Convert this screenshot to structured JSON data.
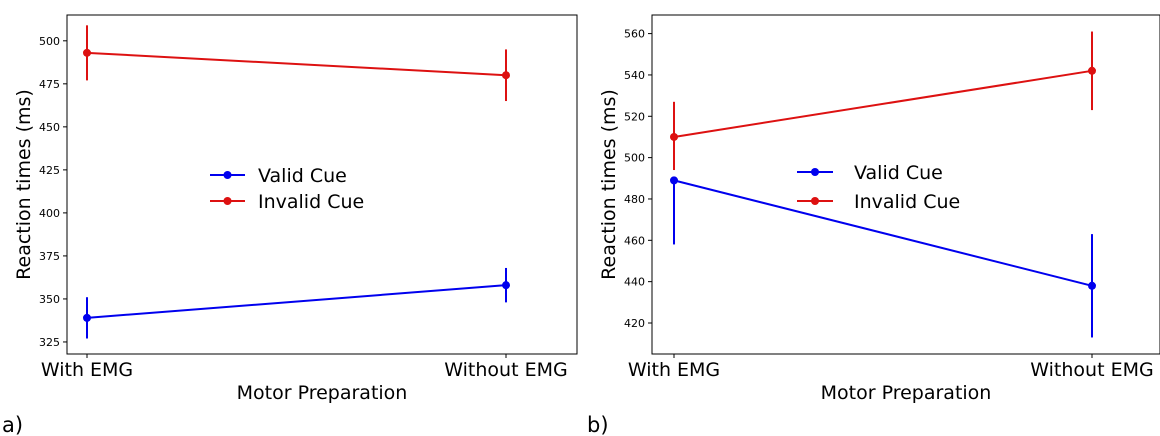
{
  "chart_data": [
    {
      "type": "line",
      "panel_label": "a)",
      "categories": [
        "With EMG",
        "Without EMG"
      ],
      "xlabel": "Motor Preparation",
      "ylabel": "Reaction times (ms)",
      "ylim": [
        318,
        515
      ],
      "yticks": [
        325,
        350,
        375,
        400,
        425,
        450,
        475,
        500
      ],
      "legend_position": "center",
      "series": [
        {
          "name": "Valid Cue",
          "color": "#0000ee",
          "values": [
            339,
            358
          ],
          "err_low": [
            327,
            348
          ],
          "err_high": [
            351,
            368
          ]
        },
        {
          "name": "Invalid Cue",
          "color": "#dd1111",
          "values": [
            493,
            480
          ],
          "err_low": [
            477,
            465
          ],
          "err_high": [
            509,
            495
          ]
        }
      ]
    },
    {
      "type": "line",
      "panel_label": "b)",
      "categories": [
        "With EMG",
        "Without EMG"
      ],
      "xlabel": "Motor Preparation",
      "ylabel": "Reaction times (ms)",
      "ylim": [
        405,
        569
      ],
      "yticks": [
        420,
        440,
        460,
        480,
        500,
        520,
        540,
        560
      ],
      "legend_position": "center",
      "series": [
        {
          "name": "Valid Cue",
          "color": "#0000ee",
          "values": [
            489,
            438
          ],
          "err_low": [
            458,
            413
          ],
          "err_high": [
            490,
            463
          ]
        },
        {
          "name": "Invalid Cue",
          "color": "#dd1111",
          "values": [
            510,
            542
          ],
          "err_low": [
            494,
            523
          ],
          "err_high": [
            527,
            561
          ]
        }
      ]
    }
  ]
}
